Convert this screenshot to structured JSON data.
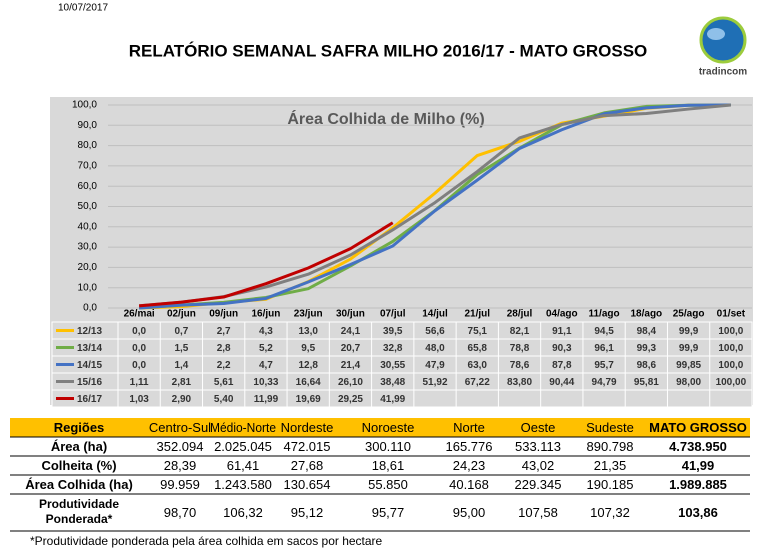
{
  "header": {
    "date": "10/07/2017",
    "title": "RELATÓRIO SEMANAL SAFRA MILHO 2016/17 - MATO GROSSO",
    "logo": "tradincom"
  },
  "chart_data": {
    "type": "line",
    "title": "Área Colhida de Milho (%)",
    "categories": [
      "26/mai",
      "02/jun",
      "09/jun",
      "16/jun",
      "23/jun",
      "30/jun",
      "07/jul",
      "14/jul",
      "21/jul",
      "28/jul",
      "04/ago",
      "11/ago",
      "18/ago",
      "25/ago",
      "01/set"
    ],
    "ylim": [
      0,
      100
    ],
    "yticks": [
      {
        "value": 0,
        "label": "0,0"
      },
      {
        "value": 10,
        "label": "10,0"
      },
      {
        "value": 20,
        "label": "20,0"
      },
      {
        "value": 30,
        "label": "30,0"
      },
      {
        "value": 40,
        "label": "40,0"
      },
      {
        "value": 50,
        "label": "50,0"
      },
      {
        "value": 60,
        "label": "60,0"
      },
      {
        "value": 70,
        "label": "70,0"
      },
      {
        "value": 80,
        "label": "80,0"
      },
      {
        "value": 90,
        "label": "90,0"
      },
      {
        "value": 100,
        "label": "100,0"
      }
    ],
    "grid": true,
    "series": [
      {
        "name": "12/13",
        "color": "#ffc000",
        "values": [
          0.0,
          0.7,
          2.7,
          4.3,
          13.0,
          24.1,
          39.5,
          56.6,
          75.1,
          82.1,
          91.1,
          94.5,
          98.4,
          99.9,
          100.0
        ],
        "value_labels": [
          "0,0",
          "0,7",
          "2,7",
          "4,3",
          "13,0",
          "24,1",
          "39,5",
          "56,6",
          "75,1",
          "82,1",
          "91,1",
          "94,5",
          "98,4",
          "99,9",
          "100,0"
        ]
      },
      {
        "name": "13/14",
        "color": "#70ad47",
        "values": [
          0.0,
          1.5,
          2.8,
          5.2,
          9.5,
          20.7,
          32.8,
          48.0,
          65.8,
          78.8,
          90.3,
          96.1,
          99.3,
          99.9,
          100.0
        ],
        "value_labels": [
          "0,0",
          "1,5",
          "2,8",
          "5,2",
          "9,5",
          "20,7",
          "32,8",
          "48,0",
          "65,8",
          "78,8",
          "90,3",
          "96,1",
          "99,3",
          "99,9",
          "100,0"
        ]
      },
      {
        "name": "14/15",
        "color": "#4472c4",
        "values": [
          0.0,
          1.4,
          2.2,
          4.7,
          12.8,
          21.4,
          30.55,
          47.9,
          63.0,
          78.6,
          87.8,
          95.7,
          98.6,
          99.85,
          100.0
        ],
        "value_labels": [
          "0,0",
          "1,4",
          "2,2",
          "4,7",
          "12,8",
          "21,4",
          "30,55",
          "47,9",
          "63,0",
          "78,6",
          "87,8",
          "95,7",
          "98,6",
          "99,85",
          "100,0"
        ]
      },
      {
        "name": "15/16",
        "color": "#7f7f7f",
        "values": [
          1.11,
          2.81,
          5.61,
          10.33,
          16.64,
          26.1,
          38.48,
          51.92,
          67.22,
          83.8,
          90.44,
          94.79,
          95.81,
          98.0,
          100.0
        ],
        "value_labels": [
          "1,11",
          "2,81",
          "5,61",
          "10,33",
          "16,64",
          "26,10",
          "38,48",
          "51,92",
          "67,22",
          "83,80",
          "90,44",
          "94,79",
          "95,81",
          "98,00",
          "100,00"
        ]
      },
      {
        "name": "16/17",
        "color": "#c00000",
        "values": [
          1.03,
          2.9,
          5.4,
          11.99,
          19.69,
          29.25,
          41.99,
          null,
          null,
          null,
          null,
          null,
          null,
          null,
          null
        ],
        "value_labels": [
          "1,03",
          "2,90",
          "5,40",
          "11,99",
          "19,69",
          "29,25",
          "41,99",
          null,
          null,
          null,
          null,
          null,
          null,
          null,
          null
        ]
      }
    ]
  },
  "table": {
    "header": [
      "Regiões",
      "Centro-Sul",
      "Médio-Norte",
      "Nordeste",
      "Noroeste",
      "Norte",
      "Oeste",
      "Sudeste",
      "MATO GROSSO"
    ],
    "rows": [
      [
        "Área (ha)",
        "352.094",
        "2.025.045",
        "472.015",
        "300.110",
        "165.776",
        "533.113",
        "890.798",
        "4.738.950"
      ],
      [
        "Colheita (%)",
        "28,39",
        "61,41",
        "27,68",
        "18,61",
        "24,23",
        "43,02",
        "21,35",
        "41,99"
      ],
      [
        "Área Colhida (ha)",
        "99.959",
        "1.243.580",
        "130.654",
        "55.850",
        "40.168",
        "229.345",
        "190.185",
        "1.989.885"
      ],
      [
        "Produtividade Ponderada*",
        "98,70",
        "106,32",
        "95,12",
        "95,77",
        "95,00",
        "107,58",
        "107,32",
        "103,86"
      ]
    ]
  },
  "footnote": "*Produtividade ponderada pela área colhida em sacos por hectare"
}
